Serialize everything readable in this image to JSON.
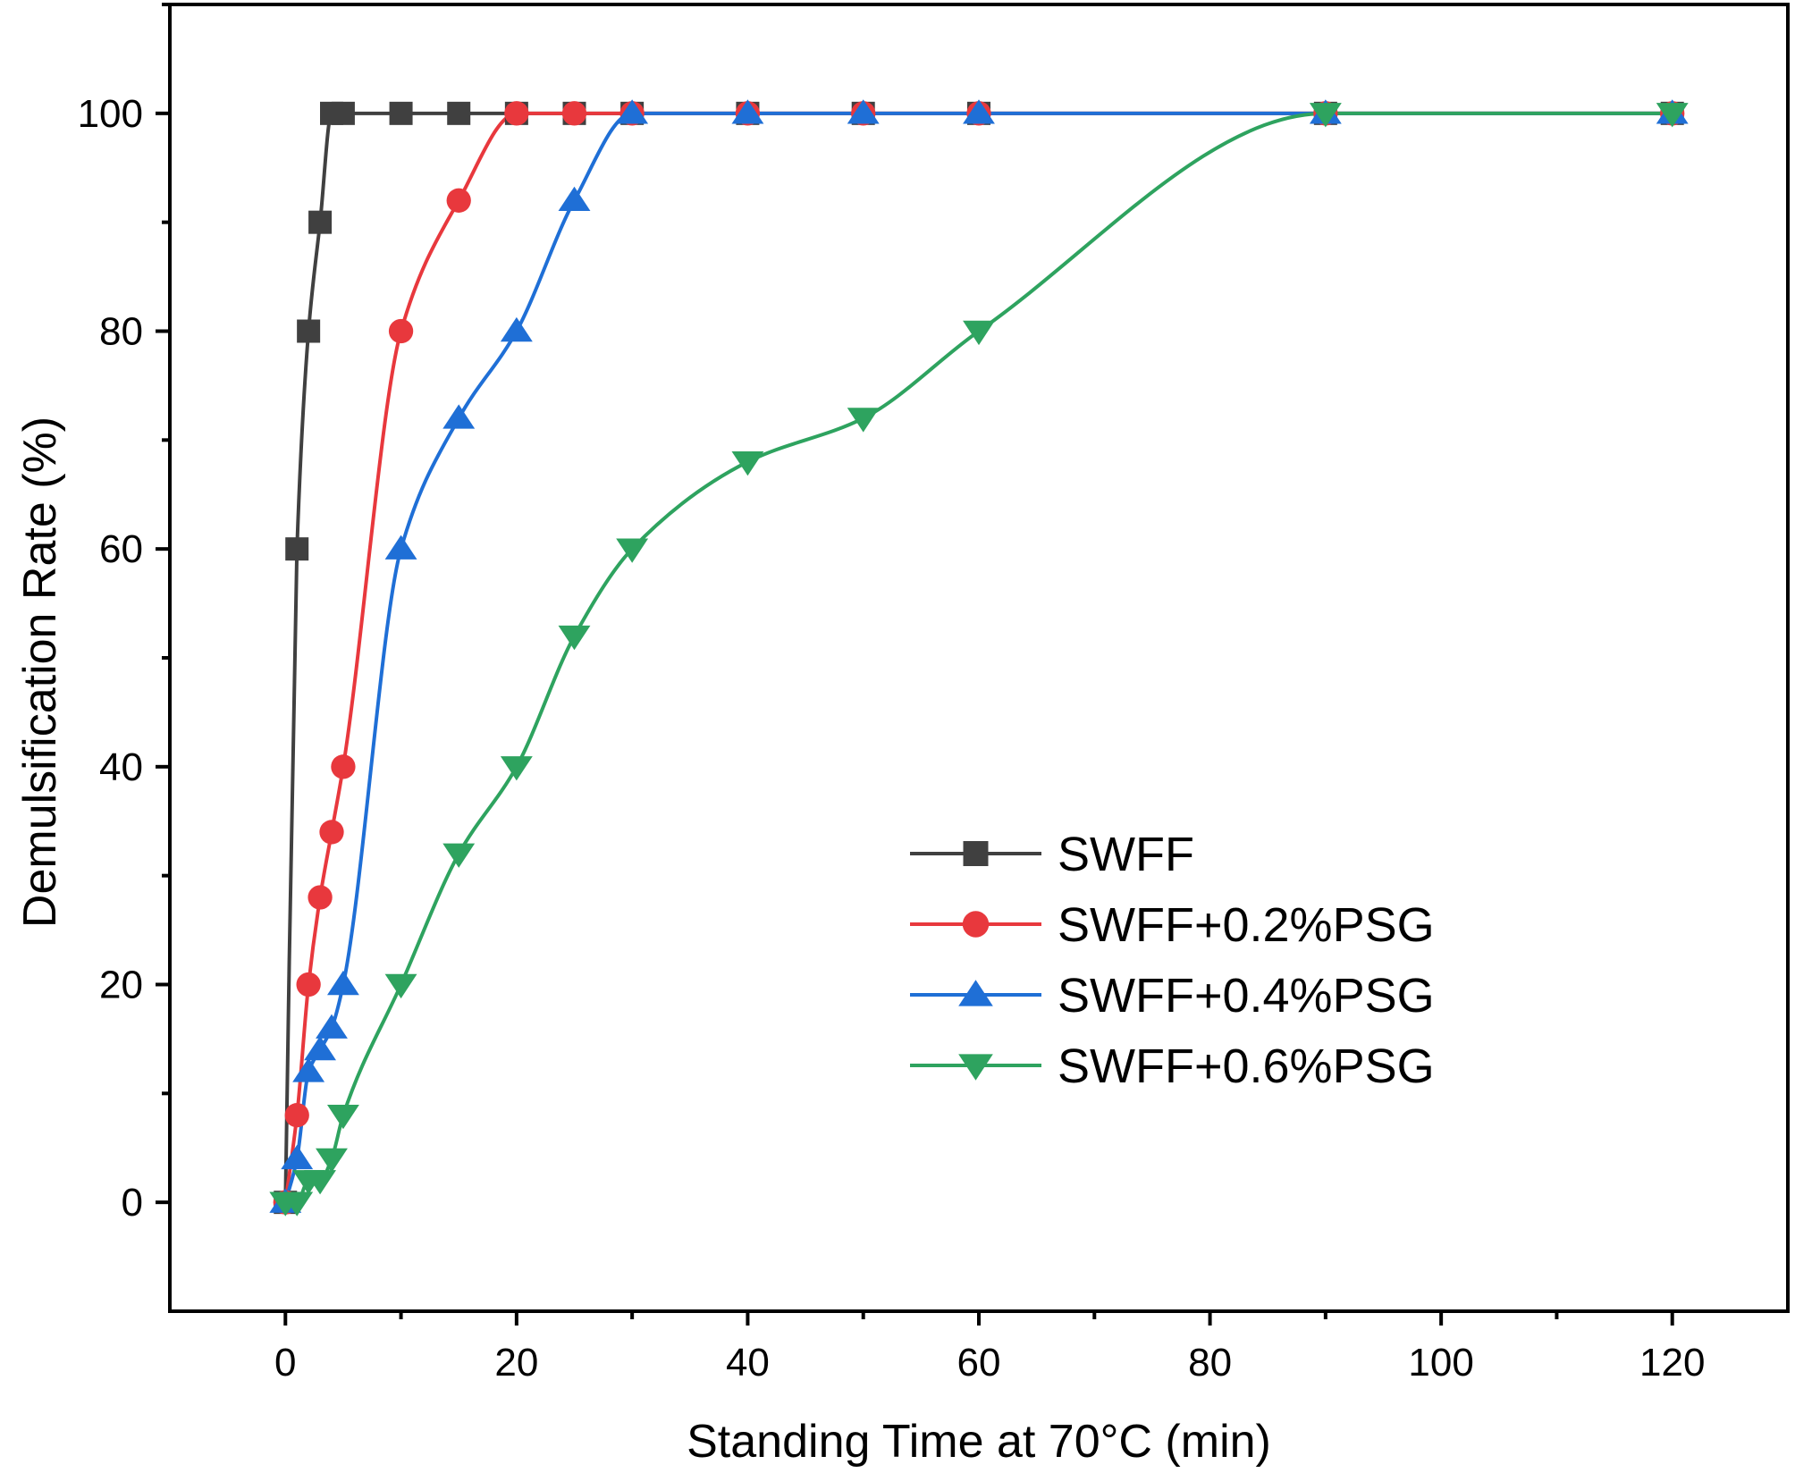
{
  "chart_data": {
    "type": "line",
    "title": "",
    "xlabel": "Standing Time at 70°C (min)",
    "ylabel": "Demulsification Rate (%)",
    "xlim": [
      -10,
      130
    ],
    "ylim": [
      -10,
      110
    ],
    "xticks": [
      0,
      20,
      40,
      60,
      80,
      100,
      120
    ],
    "yticks": [
      0,
      20,
      40,
      60,
      80,
      100
    ],
    "xtick_labels": [
      "0",
      "20",
      "40",
      "60",
      "80",
      "100",
      "120"
    ],
    "ytick_labels": [
      "0",
      "20",
      "40",
      "60",
      "80",
      "100"
    ],
    "legend_position": "center-right",
    "series": [
      {
        "name": "SWFF",
        "marker": "square",
        "color": "#404040",
        "x": [
          0,
          1,
          2,
          3,
          4,
          5,
          10,
          15,
          20,
          25,
          30,
          40,
          50,
          60,
          90,
          120
        ],
        "values": [
          0,
          60,
          80,
          90,
          100,
          100,
          100,
          100,
          100,
          100,
          100,
          100,
          100,
          100,
          100,
          100
        ]
      },
      {
        "name": "SWFF+0.2%PSG",
        "marker": "circle",
        "color": "#e8383d",
        "x": [
          0,
          1,
          2,
          3,
          4,
          5,
          10,
          15,
          20,
          25,
          30,
          40,
          50,
          60,
          90,
          120
        ],
        "values": [
          0,
          8,
          20,
          28,
          34,
          40,
          80,
          92,
          100,
          100,
          100,
          100,
          100,
          100,
          100,
          100
        ]
      },
      {
        "name": "SWFF+0.4%PSG",
        "marker": "triangle-up",
        "color": "#1f6fd6",
        "x": [
          0,
          1,
          2,
          3,
          4,
          5,
          10,
          15,
          20,
          25,
          30,
          40,
          50,
          60,
          90,
          120
        ],
        "values": [
          0,
          4,
          12,
          14,
          16,
          20,
          60,
          72,
          80,
          92,
          100,
          100,
          100,
          100,
          100,
          100
        ]
      },
      {
        "name": "SWFF+0.6%PSG",
        "marker": "triangle-down",
        "color": "#2ea35f",
        "x": [
          0,
          1,
          2,
          3,
          4,
          5,
          10,
          15,
          20,
          25,
          30,
          40,
          50,
          60,
          90,
          120
        ],
        "values": [
          0,
          0,
          2,
          2,
          4,
          8,
          20,
          32,
          40,
          52,
          60,
          68,
          72,
          80,
          100,
          100
        ]
      }
    ]
  }
}
